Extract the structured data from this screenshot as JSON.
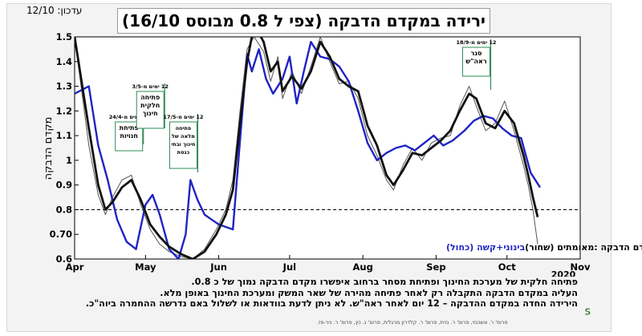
{
  "header": {
    "updated": "עדכון: 12/10",
    "title": "ירידה במקדם הדבקה (צפי ל 0.8 מבוסס 16/10)"
  },
  "chart_data": {
    "type": "line",
    "title": "ירידה במקדם הדבקה (צפי ל 0.8 מבוסס 16/10)",
    "ylabel": "מקדם הדבקה",
    "xlabel": "",
    "year_label": "2020",
    "ylim": [
      0.6,
      1.5
    ],
    "yticks": [
      "1.5",
      "1.4",
      "1.3",
      "1.2",
      "1.1",
      "1",
      "0.9",
      "0.8",
      "0.70",
      "0.6"
    ],
    "xticks": [
      "Apr",
      "May",
      "Jun",
      "Jul",
      "Aug",
      "Sep",
      "Oct",
      "Nov"
    ],
    "reference_line": 0.8,
    "legend": {
      "prefix": "מקדם הדבקה :",
      "black": "מאומתים (שחור)",
      "blue": "בינוני+קשה (כחול)"
    },
    "series": [
      {
        "name": "מאומתים (שחור)",
        "color": "#111111",
        "points": [
          [
            0,
            1.5
          ],
          [
            6,
            1.13
          ],
          [
            10,
            0.9
          ],
          [
            13,
            0.8
          ],
          [
            16,
            0.83
          ],
          [
            20,
            0.89
          ],
          [
            24,
            0.92
          ],
          [
            28,
            0.84
          ],
          [
            32,
            0.74
          ],
          [
            36,
            0.69
          ],
          [
            40,
            0.65
          ],
          [
            45,
            0.62
          ],
          [
            50,
            0.6
          ],
          [
            55,
            0.63
          ],
          [
            60,
            0.7
          ],
          [
            64,
            0.78
          ],
          [
            67,
            0.88
          ],
          [
            70,
            1.15
          ],
          [
            73,
            1.4
          ],
          [
            76,
            1.55
          ],
          [
            80,
            1.48
          ],
          [
            83,
            1.36
          ],
          [
            86,
            1.4
          ],
          [
            88,
            1.28
          ],
          [
            92,
            1.34
          ],
          [
            96,
            1.29
          ],
          [
            100,
            1.36
          ],
          [
            104,
            1.48
          ],
          [
            108,
            1.42
          ],
          [
            112,
            1.33
          ],
          [
            116,
            1.3
          ],
          [
            120,
            1.28
          ],
          [
            124,
            1.14
          ],
          [
            128,
            1.06
          ],
          [
            132,
            0.94
          ],
          [
            135,
            0.9
          ],
          [
            139,
            0.96
          ],
          [
            143,
            1.03
          ],
          [
            147,
            1.02
          ],
          [
            151,
            1.05
          ],
          [
            155,
            1.08
          ],
          [
            159,
            1.12
          ],
          [
            163,
            1.2
          ],
          [
            167,
            1.27
          ],
          [
            170,
            1.25
          ],
          [
            174,
            1.15
          ],
          [
            178,
            1.13
          ],
          [
            182,
            1.2
          ],
          [
            186,
            1.15
          ],
          [
            190,
            1.02
          ],
          [
            192,
            0.94
          ],
          [
            194,
            0.85
          ],
          [
            196,
            0.77
          ]
        ]
      },
      {
        "name": "בינוני+קשה (כחול)",
        "color": "#1f24c4",
        "points": [
          [
            0,
            1.27
          ],
          [
            6,
            1.3
          ],
          [
            10,
            1.06
          ],
          [
            14,
            0.92
          ],
          [
            18,
            0.76
          ],
          [
            22,
            0.67
          ],
          [
            26,
            0.64
          ],
          [
            30,
            0.82
          ],
          [
            33,
            0.86
          ],
          [
            36,
            0.78
          ],
          [
            40,
            0.64
          ],
          [
            44,
            0.6
          ],
          [
            47,
            0.7
          ],
          [
            49,
            0.92
          ],
          [
            52,
            0.84
          ],
          [
            55,
            0.78
          ],
          [
            58,
            0.76
          ],
          [
            61,
            0.74
          ],
          [
            64,
            0.73
          ],
          [
            67,
            0.72
          ],
          [
            70,
            1.08
          ],
          [
            73,
            1.43
          ],
          [
            75,
            1.36
          ],
          [
            78,
            1.45
          ],
          [
            81,
            1.33
          ],
          [
            84,
            1.27
          ],
          [
            88,
            1.33
          ],
          [
            91,
            1.42
          ],
          [
            94,
            1.23
          ],
          [
            97,
            1.36
          ],
          [
            100,
            1.48
          ],
          [
            104,
            1.42
          ],
          [
            108,
            1.41
          ],
          [
            112,
            1.38
          ],
          [
            116,
            1.32
          ],
          [
            120,
            1.2
          ],
          [
            124,
            1.07
          ],
          [
            128,
            1.0
          ],
          [
            132,
            1.03
          ],
          [
            136,
            1.05
          ],
          [
            140,
            1.06
          ],
          [
            144,
            1.04
          ],
          [
            148,
            1.07
          ],
          [
            152,
            1.1
          ],
          [
            156,
            1.06
          ],
          [
            160,
            1.08
          ],
          [
            165,
            1.12
          ],
          [
            169,
            1.16
          ],
          [
            173,
            1.18
          ],
          [
            177,
            1.17
          ],
          [
            181,
            1.13
          ],
          [
            185,
            1.1
          ],
          [
            189,
            1.09
          ],
          [
            193,
            0.95
          ],
          [
            197,
            0.89
          ]
        ]
      },
      {
        "name": "",
        "color": "#555555",
        "points": [
          [
            0,
            1.5
          ],
          [
            6,
            1.06
          ],
          [
            10,
            0.86
          ],
          [
            13,
            0.78
          ],
          [
            16,
            0.85
          ],
          [
            20,
            0.92
          ],
          [
            24,
            0.94
          ],
          [
            28,
            0.82
          ],
          [
            32,
            0.72
          ],
          [
            36,
            0.66
          ],
          [
            40,
            0.63
          ],
          [
            45,
            0.61
          ],
          [
            50,
            0.6
          ],
          [
            55,
            0.64
          ],
          [
            60,
            0.72
          ],
          [
            64,
            0.8
          ],
          [
            67,
            0.92
          ],
          [
            70,
            1.2
          ],
          [
            73,
            1.45
          ],
          [
            76,
            1.5
          ],
          [
            80,
            1.44
          ],
          [
            83,
            1.32
          ],
          [
            86,
            1.42
          ],
          [
            88,
            1.25
          ],
          [
            92,
            1.36
          ],
          [
            96,
            1.27
          ],
          [
            100,
            1.38
          ],
          [
            104,
            1.5
          ],
          [
            108,
            1.4
          ],
          [
            112,
            1.31
          ],
          [
            116,
            1.32
          ],
          [
            120,
            1.25
          ],
          [
            124,
            1.1
          ],
          [
            128,
            1.02
          ],
          [
            132,
            0.92
          ],
          [
            135,
            0.88
          ],
          [
            139,
            0.98
          ],
          [
            143,
            1.05
          ],
          [
            147,
            1.0
          ],
          [
            151,
            1.07
          ],
          [
            155,
            1.09
          ],
          [
            159,
            1.1
          ],
          [
            163,
            1.22
          ],
          [
            167,
            1.3
          ],
          [
            170,
            1.22
          ],
          [
            174,
            1.12
          ],
          [
            178,
            1.15
          ],
          [
            182,
            1.24
          ],
          [
            186,
            1.12
          ],
          [
            190,
            0.98
          ],
          [
            192,
            0.9
          ],
          [
            194,
            0.8
          ],
          [
            196,
            0.66
          ]
        ]
      }
    ],
    "annotations": [
      {
        "tag": "12 ימים מ-",
        "date": "24/4",
        "label": [
          "פתיחת",
          "חנויות"
        ],
        "day": 23
      },
      {
        "tag": "12 ימים מ-",
        "date": "3/5",
        "label": [
          "פתיחה",
          "חלקית",
          "חינוך"
        ],
        "day": 32
      },
      {
        "tag": "12 ימים מ-",
        "date": "17/5",
        "label": [
          "פתיחה",
          "מלאה של",
          "חינוך ובתי",
          "כנסת"
        ],
        "day": 46
      },
      {
        "tag": "12 ימים מ-",
        "date": "18/9",
        "label": [
          "סגר",
          "ראה\"ש"
        ],
        "day": 170
      }
    ]
  },
  "notes": [
    "פתיחה חלקית של מערכת החינוך ופתיחת מסחר ברחוב איפשרו מקדם הדבקה נמוך של כ 0.8.",
    "העליה במקדם הדבקה התקבלה רק לאחר פתיחה מהירה של שאר המשק ומערכת החינוך באופן מלא.",
    "הירידה החדה במקדם ההדבקה – 12 יום לאחר ראה\"ש. לא ניתן לדעת בוודאות  או לשלול באם נדרשה ההחמרה ביוה\"כ."
  ],
  "credits": "פרופ' ר. אשכנזי, פרופ' ר. גזית, פרופ' ר. קלדרון מרגלית, פרופ' נ. כץ, פרופ' ר. ניר-פז."
}
